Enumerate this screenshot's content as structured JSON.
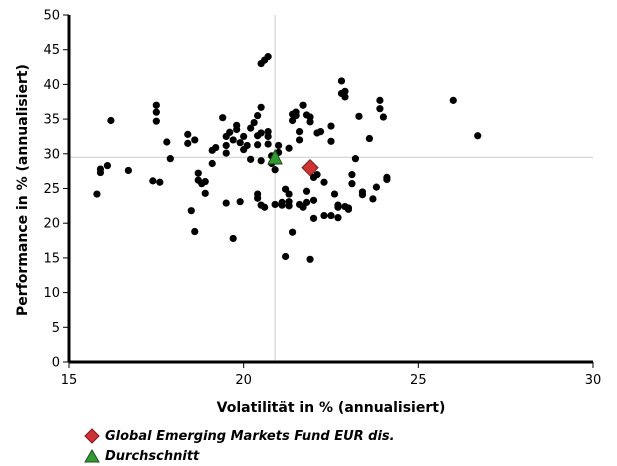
{
  "chart_data": {
    "type": "scatter",
    "xlabel": "Volatilität in % (annualisiert)",
    "ylabel": "Performance in % (annualisiert)",
    "xlim": [
      15,
      30
    ],
    "ylim": [
      0,
      50
    ],
    "xticks": [
      "15",
      "20",
      "25",
      "30"
    ],
    "yticks": [
      "0",
      "5",
      "10",
      "15",
      "20",
      "25",
      "30",
      "35",
      "40",
      "45",
      "50"
    ],
    "grid": false,
    "reference_lines": {
      "x": 20.9,
      "y": 29.5,
      "color": "#cccccc"
    },
    "legend_position": "bottom-left",
    "series": [
      {
        "marker": "circle",
        "color": "#000000",
        "points": [
          [
            15.8,
            24.2
          ],
          [
            15.9,
            27.3
          ],
          [
            15.9,
            27.8
          ],
          [
            16.1,
            28.3
          ],
          [
            16.2,
            34.8
          ],
          [
            16.7,
            27.6
          ],
          [
            17.4,
            26.1
          ],
          [
            17.6,
            25.9
          ],
          [
            17.5,
            37.0
          ],
          [
            17.5,
            36.0
          ],
          [
            17.5,
            34.7
          ],
          [
            17.8,
            31.7
          ],
          [
            17.9,
            29.3
          ],
          [
            18.4,
            32.8
          ],
          [
            18.4,
            31.5
          ],
          [
            18.5,
            21.8
          ],
          [
            18.6,
            18.8
          ],
          [
            18.6,
            32.0
          ],
          [
            18.7,
            27.2
          ],
          [
            18.7,
            26.2
          ],
          [
            18.8,
            25.7
          ],
          [
            18.9,
            24.3
          ],
          [
            18.9,
            26.0
          ],
          [
            19.1,
            28.6
          ],
          [
            19.1,
            30.5
          ],
          [
            19.2,
            30.9
          ],
          [
            19.4,
            35.2
          ],
          [
            19.5,
            32.5
          ],
          [
            19.5,
            31.2
          ],
          [
            19.5,
            30.1
          ],
          [
            19.5,
            22.9
          ],
          [
            19.6,
            33.1
          ],
          [
            19.7,
            32.0
          ],
          [
            19.7,
            17.8
          ],
          [
            19.8,
            34.1
          ],
          [
            19.8,
            33.5
          ],
          [
            19.9,
            23.1
          ],
          [
            19.9,
            31.6
          ],
          [
            20.0,
            30.6
          ],
          [
            20.0,
            32.5
          ],
          [
            20.1,
            31.2
          ],
          [
            20.2,
            33.7
          ],
          [
            20.2,
            29.2
          ],
          [
            20.3,
            34.5
          ],
          [
            20.4,
            35.5
          ],
          [
            20.4,
            32.6
          ],
          [
            20.4,
            31.3
          ],
          [
            20.4,
            23.6
          ],
          [
            20.4,
            24.2
          ],
          [
            20.5,
            43.0
          ],
          [
            20.5,
            36.7
          ],
          [
            20.5,
            33.0
          ],
          [
            20.5,
            29.0
          ],
          [
            20.5,
            22.6
          ],
          [
            20.6,
            43.5
          ],
          [
            20.7,
            44.0
          ],
          [
            20.7,
            33.2
          ],
          [
            20.7,
            32.5
          ],
          [
            20.7,
            31.4
          ],
          [
            20.8,
            29.7
          ],
          [
            20.8,
            28.6
          ],
          [
            20.6,
            22.3
          ],
          [
            20.9,
            27.7
          ],
          [
            20.9,
            22.7
          ],
          [
            21.0,
            31.2
          ],
          [
            21.0,
            30.2
          ],
          [
            21.1,
            23.0
          ],
          [
            21.1,
            22.6
          ],
          [
            21.2,
            24.9
          ],
          [
            21.2,
            15.2
          ],
          [
            21.3,
            23.1
          ],
          [
            21.3,
            22.5
          ],
          [
            21.3,
            24.2
          ],
          [
            21.3,
            30.8
          ],
          [
            21.4,
            34.8
          ],
          [
            21.4,
            35.7
          ],
          [
            21.4,
            18.7
          ],
          [
            21.5,
            36.0
          ],
          [
            21.5,
            35.5
          ],
          [
            21.6,
            22.7
          ],
          [
            21.6,
            32.0
          ],
          [
            21.6,
            33.2
          ],
          [
            21.7,
            37.0
          ],
          [
            21.7,
            22.3
          ],
          [
            21.8,
            23.0
          ],
          [
            21.8,
            24.6
          ],
          [
            21.8,
            35.6
          ],
          [
            21.9,
            35.3
          ],
          [
            21.9,
            34.6
          ],
          [
            21.9,
            14.8
          ],
          [
            22.0,
            26.6
          ],
          [
            22.0,
            23.3
          ],
          [
            22.0,
            20.7
          ],
          [
            22.1,
            33.0
          ],
          [
            22.1,
            27.0
          ],
          [
            22.2,
            33.2
          ],
          [
            22.3,
            21.1
          ],
          [
            22.3,
            25.9
          ],
          [
            22.5,
            21.1
          ],
          [
            22.5,
            34.0
          ],
          [
            22.5,
            31.8
          ],
          [
            22.6,
            24.2
          ],
          [
            22.7,
            22.3
          ],
          [
            22.7,
            20.8
          ],
          [
            22.7,
            22.6
          ],
          [
            22.8,
            40.5
          ],
          [
            22.8,
            38.7
          ],
          [
            22.9,
            39.0
          ],
          [
            22.9,
            38.2
          ],
          [
            22.9,
            22.4
          ],
          [
            23.0,
            22.2
          ],
          [
            23.0,
            22.0
          ],
          [
            23.1,
            27.0
          ],
          [
            23.1,
            25.7
          ],
          [
            23.2,
            29.3
          ],
          [
            23.3,
            35.4
          ],
          [
            23.4,
            24.5
          ],
          [
            23.4,
            24.1
          ],
          [
            23.6,
            32.2
          ],
          [
            23.7,
            23.5
          ],
          [
            23.8,
            25.2
          ],
          [
            23.9,
            37.7
          ],
          [
            23.9,
            36.5
          ],
          [
            24.0,
            35.3
          ],
          [
            24.1,
            26.3
          ],
          [
            24.1,
            26.6
          ],
          [
            26.0,
            37.7
          ],
          [
            26.7,
            32.6
          ]
        ]
      },
      {
        "name": "Global Emerging Markets Fund EUR dis.",
        "marker": "diamond",
        "color": "#cc3333",
        "points": [
          [
            21.9,
            28.0
          ]
        ]
      },
      {
        "name": "Durchschnitt",
        "marker": "triangle",
        "color": "#339933",
        "points": [
          [
            20.9,
            29.4
          ]
        ]
      }
    ]
  }
}
